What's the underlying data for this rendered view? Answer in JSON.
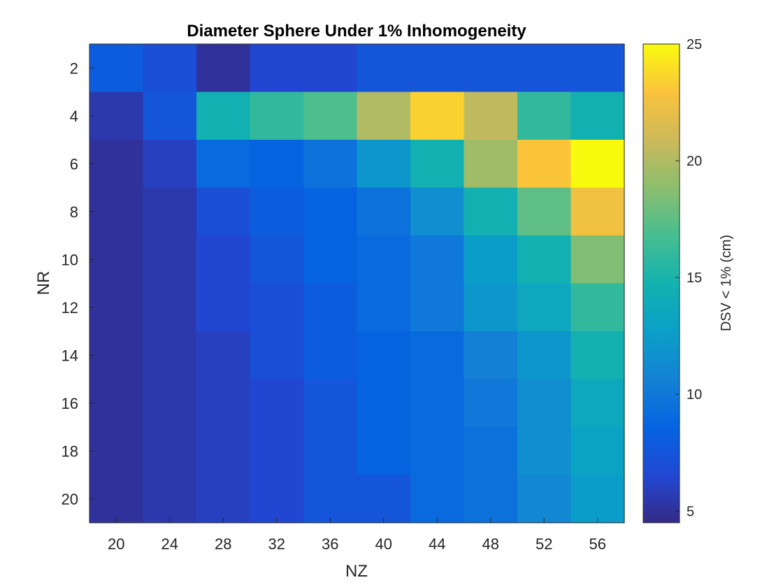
{
  "chart_data": {
    "type": "heatmap",
    "title": "Diameter Sphere Under 1% Inhomogeneity",
    "xlabel": "NZ",
    "ylabel": "NR",
    "colorbar_label": "DSV < 1% (cm)",
    "colormap": "parula",
    "clim": [
      4.5,
      25
    ],
    "colorbar_ticks": [
      5,
      10,
      15,
      20,
      25
    ],
    "x": [
      20,
      24,
      28,
      32,
      36,
      40,
      44,
      48,
      52,
      56
    ],
    "y": [
      2,
      4,
      6,
      8,
      10,
      12,
      14,
      16,
      18,
      20
    ],
    "x_tick_labels": [
      "20",
      "24",
      "28",
      "32",
      "36",
      "40",
      "44",
      "48",
      "52",
      "56"
    ],
    "y_tick_labels": [
      "2",
      "4",
      "6",
      "8",
      "10",
      "12",
      "14",
      "16",
      "18",
      "20"
    ],
    "z": [
      [
        8.0,
        7.0,
        5.0,
        6.5,
        6.5,
        7.5,
        7.5,
        7.5,
        7.5,
        7.5
      ],
      [
        5.5,
        7.5,
        14.5,
        16.0,
        17.0,
        20.0,
        23.5,
        20.5,
        16.0,
        14.5
      ],
      [
        5.0,
        6.0,
        9.0,
        8.5,
        9.5,
        12.0,
        14.5,
        19.5,
        23.0,
        25.0
      ],
      [
        5.0,
        5.5,
        7.0,
        8.0,
        8.5,
        9.5,
        11.5,
        14.5,
        17.5,
        22.5
      ],
      [
        5.0,
        5.5,
        6.5,
        7.5,
        8.5,
        9.0,
        10.0,
        12.5,
        14.5,
        18.5
      ],
      [
        5.0,
        5.5,
        6.5,
        7.0,
        8.0,
        9.0,
        10.0,
        12.0,
        13.5,
        16.0
      ],
      [
        5.0,
        5.5,
        6.0,
        7.0,
        8.0,
        8.5,
        9.0,
        10.5,
        12.0,
        14.5
      ],
      [
        5.0,
        5.5,
        6.0,
        6.5,
        7.5,
        8.5,
        9.0,
        10.0,
        11.5,
        13.5
      ],
      [
        5.0,
        5.5,
        6.0,
        6.5,
        7.5,
        8.5,
        9.0,
        9.5,
        11.5,
        13.0
      ],
      [
        5.0,
        5.5,
        6.0,
        6.5,
        7.5,
        7.5,
        9.0,
        9.5,
        11.0,
        12.5
      ]
    ]
  }
}
